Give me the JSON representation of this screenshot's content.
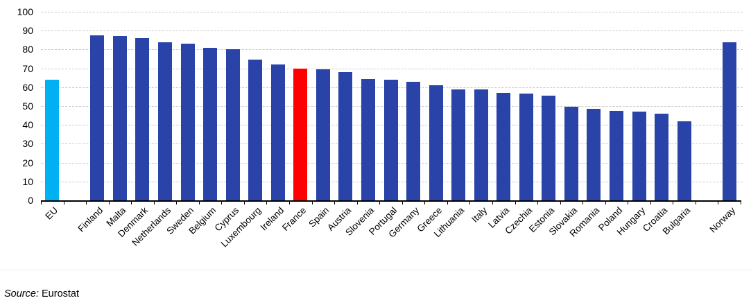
{
  "chart_data": {
    "type": "bar",
    "title": "",
    "xlabel": "",
    "ylabel": "",
    "ylim": [
      0,
      100
    ],
    "yticks": [
      0,
      10,
      20,
      30,
      40,
      50,
      60,
      70,
      80,
      90,
      100
    ],
    "grid": "horizontal-dashed",
    "legend": "none",
    "total_slots": 31,
    "bar_colors": {
      "eu": "#00B0F0",
      "member": "#2943A8",
      "highlight": "#FF0000"
    },
    "bars": [
      {
        "label": "EU",
        "value": 64,
        "role": "eu",
        "slot": 0
      },
      {
        "label": "Finland",
        "value": 87.5,
        "role": "member",
        "slot": 2
      },
      {
        "label": "Malta",
        "value": 87,
        "role": "member",
        "slot": 3
      },
      {
        "label": "Denmark",
        "value": 86,
        "role": "member",
        "slot": 4
      },
      {
        "label": "Netherlands",
        "value": 84,
        "role": "member",
        "slot": 5
      },
      {
        "label": "Sweden",
        "value": 83,
        "role": "member",
        "slot": 6
      },
      {
        "label": "Belgium",
        "value": 81,
        "role": "member",
        "slot": 7
      },
      {
        "label": "Cyprus",
        "value": 80,
        "role": "member",
        "slot": 8
      },
      {
        "label": "Luxembourg",
        "value": 74.5,
        "role": "member",
        "slot": 9
      },
      {
        "label": "Ireland",
        "value": 72,
        "role": "member",
        "slot": 10
      },
      {
        "label": "France",
        "value": 70,
        "role": "highlight",
        "slot": 11
      },
      {
        "label": "Spain",
        "value": 69.5,
        "role": "member",
        "slot": 12
      },
      {
        "label": "Austria",
        "value": 68,
        "role": "member",
        "slot": 13
      },
      {
        "label": "Slovenia",
        "value": 64.5,
        "role": "member",
        "slot": 14
      },
      {
        "label": "Portugal",
        "value": 64,
        "role": "member",
        "slot": 15
      },
      {
        "label": "Germany",
        "value": 63,
        "role": "member",
        "slot": 16
      },
      {
        "label": "Greece",
        "value": 61,
        "role": "member",
        "slot": 17
      },
      {
        "label": "Lithuania",
        "value": 59,
        "role": "member",
        "slot": 18
      },
      {
        "label": "Italy",
        "value": 59,
        "role": "member",
        "slot": 19
      },
      {
        "label": "Latvia",
        "value": 57,
        "role": "member",
        "slot": 20
      },
      {
        "label": "Czechia",
        "value": 56.5,
        "role": "member",
        "slot": 21
      },
      {
        "label": "Estonia",
        "value": 55.5,
        "role": "member",
        "slot": 22
      },
      {
        "label": "Slovakia",
        "value": 49.5,
        "role": "member",
        "slot": 23
      },
      {
        "label": "Romania",
        "value": 48.5,
        "role": "member",
        "slot": 24
      },
      {
        "label": "Poland",
        "value": 47.5,
        "role": "member",
        "slot": 25
      },
      {
        "label": "Hungary",
        "value": 47,
        "role": "member",
        "slot": 26
      },
      {
        "label": "Croatia",
        "value": 46,
        "role": "member",
        "slot": 27
      },
      {
        "label": "Bulgaria",
        "value": 42,
        "role": "member",
        "slot": 28
      },
      {
        "label": "Norway",
        "value": 84,
        "role": "member",
        "slot": 30
      }
    ]
  },
  "source": {
    "label": "Source:",
    "value": " Eurostat"
  },
  "colors": {
    "grid": "#C9C9C9",
    "axis": "#000000",
    "text": "#000000",
    "divider": "#EBEBEB"
  }
}
